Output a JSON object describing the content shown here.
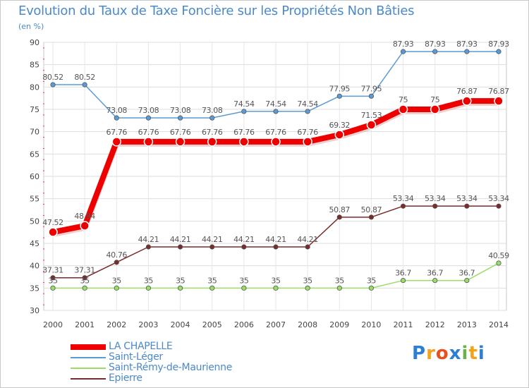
{
  "chart_data": {
    "type": "line",
    "title": "Evolution du Taux de Taxe Foncière sur les Propriétés Non Bâties",
    "ylabel": "(en %)",
    "xlabel": "",
    "ylim": [
      30,
      90
    ],
    "yticks": [
      30,
      35,
      40,
      45,
      50,
      55,
      60,
      65,
      70,
      75,
      80,
      85,
      90
    ],
    "grid": true,
    "legend_position": "bottom-left",
    "categories": [
      "2000",
      "2001",
      "2002",
      "2003",
      "2004",
      "2005",
      "2006",
      "2007",
      "2008",
      "2009",
      "2010",
      "2011",
      "2012",
      "2013",
      "2014"
    ],
    "series": [
      {
        "name": "LA CHAPELLE",
        "color": "#ee0000",
        "values": [
          47.52,
          48.94,
          67.76,
          67.76,
          67.76,
          67.76,
          67.76,
          67.76,
          67.76,
          69.32,
          71.53,
          75,
          75,
          76.87,
          76.87
        ],
        "labels": [
          "47.52",
          "48.94",
          "67.76",
          "67.76",
          "67.76",
          "67.76",
          "67.76",
          "67.76",
          "67.76",
          "69.32",
          "71.53",
          "75",
          "75",
          "76.87",
          "76.87"
        ]
      },
      {
        "name": "Saint-Léger",
        "color": "#5b9bd5",
        "values": [
          80.52,
          80.52,
          73.08,
          73.08,
          73.08,
          73.08,
          74.54,
          74.54,
          74.54,
          77.95,
          77.95,
          87.93,
          87.93,
          87.93,
          87.93
        ],
        "labels": [
          "80.52",
          "80.52",
          "73.08",
          "73.08",
          "73.08",
          "73.08",
          "74.54",
          "74.54",
          "74.54",
          "77.95",
          "77.95",
          "87.93",
          "87.93",
          "87.93",
          "87.93"
        ]
      },
      {
        "name": "Saint-Rémy-de-Maurienne",
        "color": "#99dd66",
        "values": [
          35,
          35,
          35,
          35,
          35,
          35,
          35,
          35,
          35,
          35,
          35,
          36.7,
          36.7,
          36.7,
          40.59
        ],
        "labels": [
          "35",
          "35",
          "35",
          "35",
          "35",
          "35",
          "35",
          "35",
          "35",
          "35",
          "35",
          "36.7",
          "36.7",
          "36.7",
          "40.59"
        ]
      },
      {
        "name": "Epierre",
        "color": "#7a2a2a",
        "values": [
          37.31,
          37.31,
          40.76,
          44.21,
          44.21,
          44.21,
          44.21,
          44.21,
          44.21,
          50.87,
          50.87,
          53.34,
          53.34,
          53.34,
          53.34
        ],
        "labels": [
          "37.31",
          "37.31",
          "40.76",
          "44.21",
          "44.21",
          "44.21",
          "44.21",
          "44.21",
          "44.21",
          "50.87",
          "50.87",
          "53.34",
          "53.34",
          "53.34",
          "53.34"
        ]
      }
    ]
  },
  "logo": {
    "text": "Proxiti",
    "letters": [
      "P",
      "r",
      "o",
      "x",
      "i",
      "t",
      "i"
    ],
    "colors": [
      "#2f7fd0",
      "#f2a31c",
      "#e8501e",
      "#2f7fd0",
      "#6ab04c",
      "#f2a31c",
      "#2f7fd0"
    ]
  }
}
